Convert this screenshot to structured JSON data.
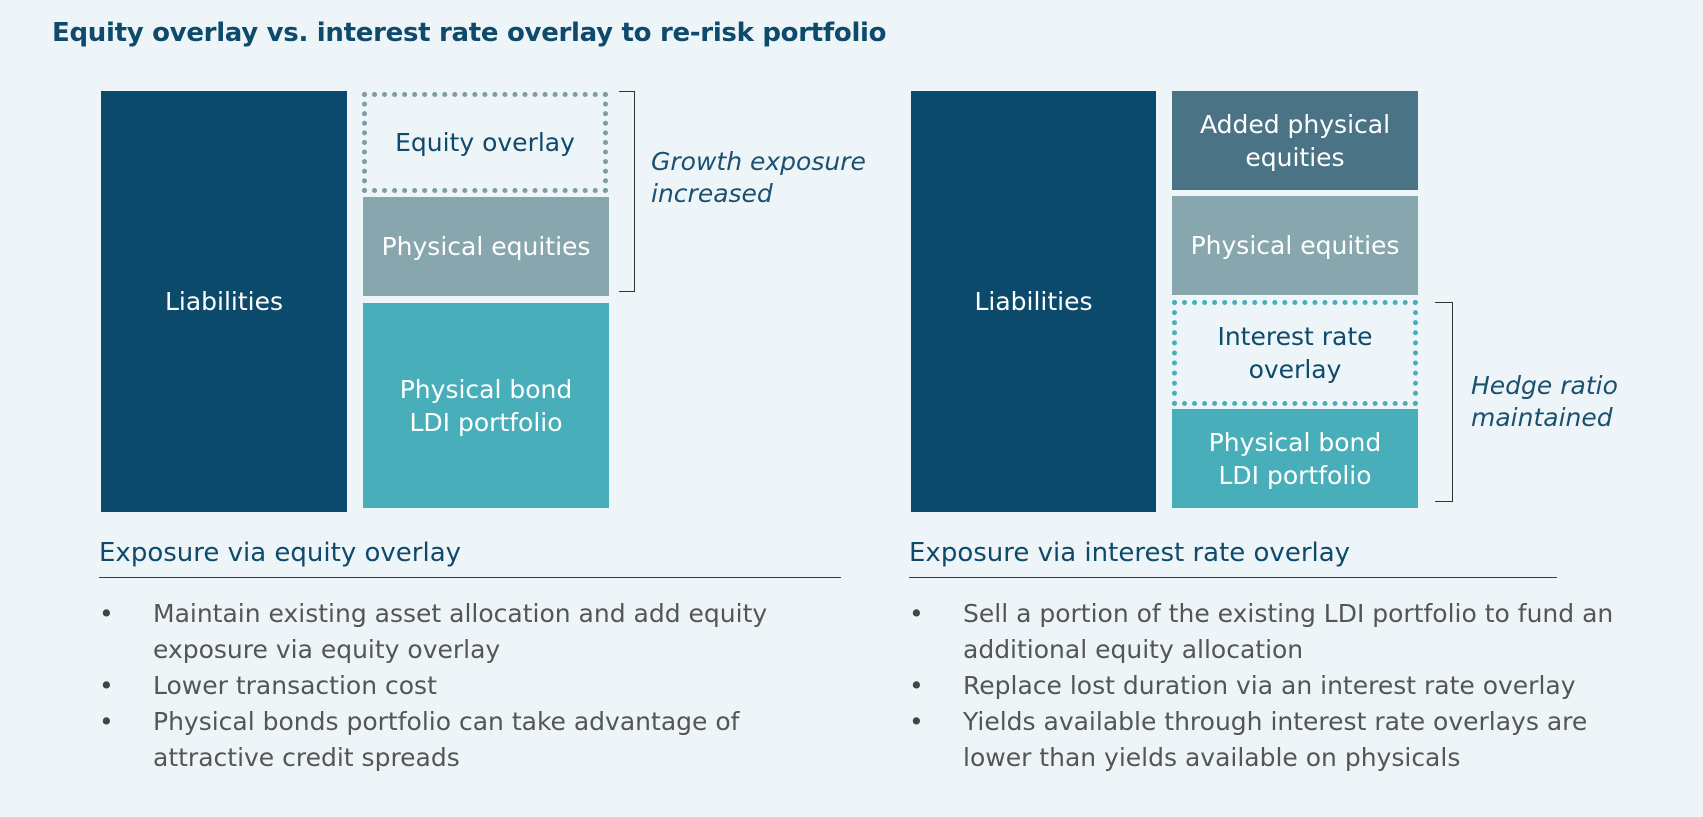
{
  "title": "Equity overlay vs. interest rate overlay to re-risk portfolio",
  "left": {
    "liabilities": "Liabilities",
    "equity_overlay": "Equity overlay",
    "physical_equities": "Physical equities",
    "physical_bond": "Physical bond\nLDI portfolio",
    "note": "Growth exposure\nincreased",
    "heading": "Exposure via equity overlay",
    "bullets": [
      "Maintain existing asset allocation and add equity exposure via equity overlay",
      "Lower transaction cost",
      "Physical bonds portfolio can take advantage of attractive credit spreads"
    ]
  },
  "right": {
    "liabilities": "Liabilities",
    "added_equities": "Added physical\nequities",
    "physical_equities": "Physical equities",
    "interest_overlay": "Interest rate\noverlay",
    "physical_bond": "Physical bond\nLDI portfolio",
    "note": "Hedge ratio\nmaintained",
    "heading": "Exposure via interest rate overlay",
    "bullets": [
      "Sell a portion of the existing LDI portfolio to fund an additional equity allocation",
      "Replace lost duration via an interest rate overlay",
      "Yields available through  interest rate overlays are lower than yields available on physicals"
    ]
  },
  "colors": {
    "liabilities": "#0c4a6b",
    "physical_equities": "#87a6ad",
    "ldi": "#48afba",
    "added_equities": "#4a7385",
    "heading": "#0e4a6b"
  }
}
